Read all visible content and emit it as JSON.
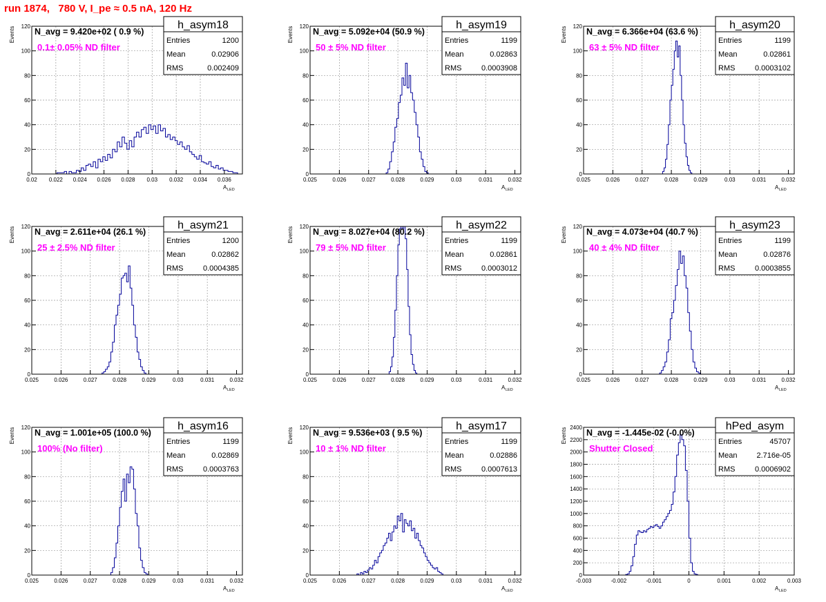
{
  "title": "run 1874,   780 V, I_pe ≈ 0.5 nA, 120 Hz",
  "colors": {
    "title": "#ff0000",
    "annotation": "#ff00ff",
    "histogram": "#000099",
    "grid": "#999999",
    "frame": "#000000"
  },
  "chart_data": [
    {
      "type": "histogram",
      "name": "h_asym18",
      "ylabel": "Events",
      "xlabel": "A",
      "xlabel_sub": "LED",
      "xlim": [
        0.02,
        0.0375
      ],
      "ylim": [
        0,
        120
      ],
      "xticks": [
        0.02,
        0.022,
        0.024,
        0.026,
        0.028,
        0.03,
        0.032,
        0.034,
        0.036
      ],
      "xtick_labels": [
        "0.02",
        "0.022",
        "0.024",
        "0.026",
        "0.028",
        "0.03",
        "0.032",
        "0.034",
        "0.036"
      ],
      "yticks": [
        0,
        20,
        40,
        60,
        80,
        100,
        120
      ],
      "ytick_labels": [
        "0",
        "20",
        "40",
        "60",
        "80",
        "100",
        "120"
      ],
      "navg_label": "N_avg = 9.420e+02 ( 0.9 %)",
      "annotation": "0.1± 0.05% ND filter",
      "stats": {
        "Entries": "1200",
        "Mean": "0.02906",
        "RMS": "0.002409"
      },
      "bin_start": 0.0215,
      "bin_width": 0.0002,
      "counts": [
        0,
        0,
        0,
        1,
        1,
        1,
        2,
        0,
        2,
        1,
        1,
        3,
        2,
        5,
        3,
        7,
        8,
        6,
        10,
        5,
        12,
        10,
        14,
        11,
        16,
        13,
        20,
        18,
        26,
        22,
        30,
        25,
        20,
        27,
        22,
        30,
        34,
        30,
        36,
        38,
        33,
        40,
        36,
        39,
        33,
        40,
        35,
        37,
        30,
        32,
        28,
        30,
        27,
        24,
        26,
        22,
        20,
        23,
        18,
        16,
        14,
        12,
        15,
        10,
        9,
        8,
        10,
        6,
        5,
        7,
        4,
        5,
        3,
        3,
        2,
        2,
        1,
        1
      ]
    },
    {
      "type": "histogram",
      "name": "h_asym19",
      "ylabel": "Events",
      "xlabel": "A",
      "xlabel_sub": "LED",
      "xlim": [
        0.025,
        0.0322
      ],
      "ylim": [
        0,
        120
      ],
      "xticks": [
        0.025,
        0.026,
        0.027,
        0.028,
        0.029,
        0.03,
        0.031,
        0.032
      ],
      "xtick_labels": [
        "0.025",
        "0.026",
        "0.027",
        "0.028",
        "0.029",
        "0.03",
        "0.031",
        "0.032"
      ],
      "yticks": [
        0,
        20,
        40,
        60,
        80,
        100,
        120
      ],
      "ytick_labels": [
        "0",
        "20",
        "40",
        "60",
        "80",
        "100",
        "120"
      ],
      "navg_label": "N_avg = 5.092e+04 (50.9 %)",
      "annotation": "50 ± 5% ND filter",
      "stats": {
        "Entries": "1199",
        "Mean": "0.02863",
        "RMS": "0.0003908"
      },
      "bin_start": 0.0276,
      "bin_width": 6e-05,
      "counts": [
        1,
        4,
        10,
        18,
        26,
        38,
        45,
        58,
        64,
        78,
        72,
        90,
        70,
        80,
        66,
        60,
        50,
        40,
        30,
        18,
        12,
        6,
        2,
        1
      ]
    },
    {
      "type": "histogram",
      "name": "h_asym20",
      "ylabel": "Events",
      "xlabel": "A",
      "xlabel_sub": "LED",
      "xlim": [
        0.025,
        0.0322
      ],
      "ylim": [
        0,
        120
      ],
      "xticks": [
        0.025,
        0.026,
        0.027,
        0.028,
        0.029,
        0.03,
        0.031,
        0.032
      ],
      "xtick_labels": [
        "0.025",
        "0.026",
        "0.027",
        "0.028",
        "0.029",
        "0.03",
        "0.031",
        "0.032"
      ],
      "yticks": [
        0,
        20,
        40,
        60,
        80,
        100,
        120
      ],
      "ytick_labels": [
        "0",
        "20",
        "40",
        "60",
        "80",
        "100",
        "120"
      ],
      "navg_label": "N_avg = 6.366e+04 (63.6 %)",
      "annotation": "63 ± 5% ND filter",
      "stats": {
        "Entries": "1199",
        "Mean": "0.02861",
        "RMS": "0.0003102"
      },
      "bin_start": 0.0277,
      "bin_width": 5e-05,
      "counts": [
        2,
        5,
        12,
        24,
        40,
        60,
        72,
        85,
        100,
        108,
        95,
        104,
        80,
        60,
        40,
        25,
        14,
        7,
        3,
        1
      ]
    },
    {
      "type": "histogram",
      "name": "h_asym21",
      "ylabel": "Events",
      "xlabel": "A",
      "xlabel_sub": "LED",
      "xlim": [
        0.025,
        0.0322
      ],
      "ylim": [
        0,
        120
      ],
      "xticks": [
        0.025,
        0.026,
        0.027,
        0.028,
        0.029,
        0.03,
        0.031,
        0.032
      ],
      "xtick_labels": [
        "0.025",
        "0.026",
        "0.027",
        "0.028",
        "0.029",
        "0.03",
        "0.031",
        "0.032"
      ],
      "yticks": [
        0,
        20,
        40,
        60,
        80,
        100,
        120
      ],
      "ytick_labels": [
        "0",
        "20",
        "40",
        "60",
        "80",
        "100",
        "120"
      ],
      "navg_label": "N_avg = 2.611e+04 (26.1 %)",
      "annotation": "25 ± 2.5% ND filter",
      "stats": {
        "Entries": "1200",
        "Mean": "0.02862",
        "RMS": "0.0004385"
      },
      "bin_start": 0.0274,
      "bin_width": 6e-05,
      "counts": [
        1,
        2,
        4,
        6,
        10,
        18,
        26,
        40,
        48,
        56,
        65,
        78,
        80,
        82,
        75,
        88,
        70,
        56,
        40,
        30,
        18,
        12,
        6,
        3,
        1
      ]
    },
    {
      "type": "histogram",
      "name": "h_asym22",
      "ylabel": "Events",
      "xlabel": "A",
      "xlabel_sub": "LED",
      "xlim": [
        0.025,
        0.0322
      ],
      "ylim": [
        0,
        120
      ],
      "xticks": [
        0.025,
        0.026,
        0.027,
        0.028,
        0.029,
        0.03,
        0.031,
        0.032
      ],
      "xtick_labels": [
        "0.025",
        "0.026",
        "0.027",
        "0.028",
        "0.029",
        "0.03",
        "0.031",
        "0.032"
      ],
      "yticks": [
        0,
        20,
        40,
        60,
        80,
        100,
        120
      ],
      "ytick_labels": [
        "0",
        "20",
        "40",
        "60",
        "80",
        "100",
        "120"
      ],
      "navg_label": "N_avg = 8.027e+04 (80.2 %)",
      "annotation": "79 ± 5% ND filter",
      "stats": {
        "Entries": "1199",
        "Mean": "0.02861",
        "RMS": "0.0003012"
      },
      "bin_start": 0.0277,
      "bin_width": 5e-05,
      "counts": [
        2,
        6,
        14,
        30,
        52,
        80,
        105,
        118,
        122,
        118,
        122,
        110,
        85,
        55,
        32,
        16,
        8,
        3,
        1
      ]
    },
    {
      "type": "histogram",
      "name": "h_asym23",
      "ylabel": "Events",
      "xlabel": "A",
      "xlabel_sub": "LED",
      "xlim": [
        0.025,
        0.0322
      ],
      "ylim": [
        0,
        120
      ],
      "xticks": [
        0.025,
        0.026,
        0.027,
        0.028,
        0.029,
        0.03,
        0.031,
        0.032
      ],
      "xtick_labels": [
        "0.025",
        "0.026",
        "0.027",
        "0.028",
        "0.029",
        "0.03",
        "0.031",
        "0.032"
      ],
      "yticks": [
        0,
        20,
        40,
        60,
        80,
        100,
        120
      ],
      "ytick_labels": [
        "0",
        "20",
        "40",
        "60",
        "80",
        "100",
        "120"
      ],
      "navg_label": "N_avg = 4.073e+04 (40.7 %)",
      "annotation": "40 ± 4% ND filter",
      "stats": {
        "Entries": "1199",
        "Mean": "0.02876",
        "RMS": "0.0003855"
      },
      "bin_start": 0.0276,
      "bin_width": 6e-05,
      "counts": [
        1,
        3,
        6,
        10,
        18,
        28,
        45,
        50,
        60,
        72,
        85,
        100,
        90,
        96,
        80,
        70,
        50,
        35,
        20,
        10,
        5,
        2,
        1
      ]
    },
    {
      "type": "histogram",
      "name": "h_asym16",
      "ylabel": "Events",
      "xlabel": "A",
      "xlabel_sub": "LED",
      "xlim": [
        0.025,
        0.0322
      ],
      "ylim": [
        0,
        120
      ],
      "xticks": [
        0.025,
        0.026,
        0.027,
        0.028,
        0.029,
        0.03,
        0.031,
        0.032
      ],
      "xtick_labels": [
        "0.025",
        "0.026",
        "0.027",
        "0.028",
        "0.029",
        "0.03",
        "0.031",
        "0.032"
      ],
      "yticks": [
        0,
        20,
        40,
        60,
        80,
        100,
        120
      ],
      "ytick_labels": [
        "0",
        "20",
        "40",
        "60",
        "80",
        "100",
        "120"
      ],
      "navg_label": "N_avg = 1.001e+05 (100.0 %)",
      "annotation": "100% (No filter)",
      "stats": {
        "Entries": "1199",
        "Mean": "0.02869",
        "RMS": "0.0003763"
      },
      "bin_start": 0.0277,
      "bin_width": 6e-05,
      "counts": [
        2,
        6,
        14,
        26,
        40,
        55,
        68,
        78,
        60,
        82,
        75,
        88,
        86,
        70,
        50,
        40,
        22,
        12,
        6,
        2,
        1
      ]
    },
    {
      "type": "histogram",
      "name": "h_asym17",
      "ylabel": "Events",
      "xlabel": "A",
      "xlabel_sub": "LED",
      "xlim": [
        0.025,
        0.0322
      ],
      "ylim": [
        0,
        120
      ],
      "xticks": [
        0.025,
        0.026,
        0.027,
        0.028,
        0.029,
        0.03,
        0.031,
        0.032
      ],
      "xtick_labels": [
        "0.025",
        "0.026",
        "0.027",
        "0.028",
        "0.029",
        "0.03",
        "0.031",
        "0.032"
      ],
      "yticks": [
        0,
        20,
        40,
        60,
        80,
        100,
        120
      ],
      "ytick_labels": [
        "0",
        "20",
        "40",
        "60",
        "80",
        "100",
        "120"
      ],
      "navg_label": "N_avg = 9.536e+03 ( 9.5 %)",
      "annotation": "10 ± 1% ND filter",
      "stats": {
        "Entries": "1199",
        "Mean": "0.02886",
        "RMS": "0.0007613"
      },
      "bin_start": 0.0266,
      "bin_width": 6e-05,
      "counts": [
        1,
        0,
        2,
        1,
        3,
        2,
        4,
        6,
        5,
        8,
        12,
        10,
        15,
        18,
        20,
        24,
        26,
        30,
        34,
        28,
        35,
        40,
        38,
        48,
        44,
        50,
        35,
        45,
        42,
        40,
        44,
        36,
        38,
        30,
        34,
        28,
        24,
        22,
        18,
        15,
        12,
        10,
        8,
        6,
        5,
        6,
        3,
        2,
        1
      ]
    },
    {
      "type": "histogram",
      "name": "hPed_asym",
      "ylabel": "Events",
      "xlabel": "A",
      "xlabel_sub": "LED",
      "xlim": [
        -0.003,
        0.003
      ],
      "ylim": [
        0,
        2400
      ],
      "xticks": [
        -0.003,
        -0.002,
        -0.001,
        0,
        0.001,
        0.002,
        0.003
      ],
      "xtick_labels": [
        "-0.003",
        "-0.002",
        "-0.001",
        "0",
        "0.001",
        "0.002",
        "0.003"
      ],
      "yticks": [
        0,
        200,
        400,
        600,
        800,
        1000,
        1200,
        1400,
        1600,
        1800,
        2000,
        2200,
        2400
      ],
      "ytick_labels": [
        "0",
        "200",
        "400",
        "600",
        "800",
        "1000",
        "1200",
        "1400",
        "1600",
        "1800",
        "2000",
        "2200",
        "2400"
      ],
      "navg_label": "N_avg = -1.445e-02 (-0.0%)",
      "annotation": "Shutter Closed",
      "stats": {
        "Entries": "45707",
        "Mean": "2.716e-05",
        "RMS": "0.0006902"
      },
      "bin_start": -0.0018,
      "bin_width": 5e-05,
      "counts": [
        10,
        20,
        60,
        150,
        300,
        500,
        650,
        720,
        700,
        690,
        720,
        700,
        740,
        760,
        790,
        770,
        800,
        820,
        790,
        760,
        800,
        860,
        900,
        950,
        1000,
        1050,
        1150,
        1350,
        1600,
        1950,
        2150,
        2280,
        2200,
        2100,
        1700,
        1200,
        600,
        200,
        60,
        20,
        10
      ]
    }
  ]
}
